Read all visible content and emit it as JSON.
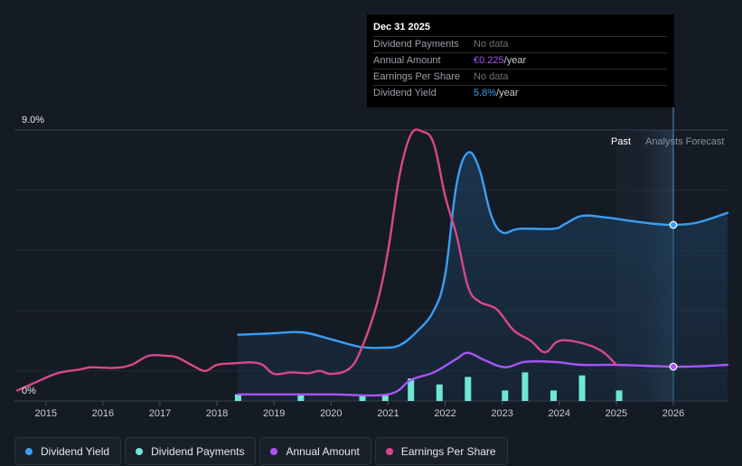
{
  "tooltip": {
    "date": "Dec 31 2025",
    "rows": [
      {
        "label": "Dividend Payments",
        "value": "No data",
        "unit": ""
      },
      {
        "label": "Annual Amount",
        "value": "€0.225",
        "unit": "/year"
      },
      {
        "label": "Earnings Per Share",
        "value": "No data",
        "unit": ""
      },
      {
        "label": "Dividend Yield",
        "value": "5.8%",
        "unit": "/year"
      }
    ]
  },
  "regions": {
    "past": "Past",
    "forecast": "Analysts Forecast"
  },
  "legend": [
    {
      "label": "Dividend Yield",
      "color": "#3b9ef5"
    },
    {
      "label": "Dividend Payments",
      "color": "#6ee7d8"
    },
    {
      "label": "Annual Amount",
      "color": "#a855f7"
    },
    {
      "label": "Earnings Per Share",
      "color": "#d9488a"
    }
  ],
  "chart_data": {
    "type": "line",
    "title": "",
    "x_range": [
      2014.45,
      2026.95
    ],
    "y_range": [
      0,
      9.0
    ],
    "y_tick_labels": [
      "9.0%",
      "0%"
    ],
    "x_ticks": [
      2015,
      2016,
      2017,
      2018,
      2019,
      2020,
      2021,
      2022,
      2023,
      2024,
      2025,
      2026
    ],
    "past_end": 2025.0,
    "forecast_start": 2025.35,
    "highlight_x": 2026.0,
    "series": [
      {
        "name": "Dividend Yield",
        "color": "#3b9ef5",
        "fill": true,
        "points": [
          [
            2018.37,
            2.2
          ],
          [
            2019.0,
            2.25
          ],
          [
            2019.5,
            2.28
          ],
          [
            2020.0,
            2.05
          ],
          [
            2020.5,
            1.8
          ],
          [
            2020.9,
            1.77
          ],
          [
            2021.2,
            1.85
          ],
          [
            2021.5,
            2.3
          ],
          [
            2021.8,
            3.0
          ],
          [
            2022.0,
            4.2
          ],
          [
            2022.2,
            7.2
          ],
          [
            2022.4,
            8.25
          ],
          [
            2022.6,
            7.7
          ],
          [
            2022.8,
            6.2
          ],
          [
            2023.0,
            5.6
          ],
          [
            2023.3,
            5.72
          ],
          [
            2023.9,
            5.72
          ],
          [
            2024.1,
            5.88
          ],
          [
            2024.4,
            6.15
          ],
          [
            2024.8,
            6.1
          ],
          [
            2025.3,
            5.97
          ],
          [
            2025.7,
            5.88
          ],
          [
            2026.0,
            5.85
          ],
          [
            2026.4,
            5.92
          ],
          [
            2026.95,
            6.25
          ]
        ]
      },
      {
        "name": "Annual Amount",
        "color": "#a855f7",
        "points": [
          [
            2018.37,
            0.22
          ],
          [
            2019.0,
            0.22
          ],
          [
            2020.0,
            0.22
          ],
          [
            2021.0,
            0.22
          ],
          [
            2021.4,
            0.7
          ],
          [
            2021.8,
            0.95
          ],
          [
            2022.2,
            1.4
          ],
          [
            2022.4,
            1.6
          ],
          [
            2022.7,
            1.35
          ],
          [
            2023.05,
            1.12
          ],
          [
            2023.4,
            1.3
          ],
          [
            2023.9,
            1.3
          ],
          [
            2024.4,
            1.2
          ],
          [
            2025.0,
            1.2
          ],
          [
            2025.5,
            1.17
          ],
          [
            2026.0,
            1.14
          ],
          [
            2026.4,
            1.15
          ],
          [
            2026.95,
            1.2
          ]
        ]
      },
      {
        "name": "Earnings Per Share",
        "color": "#d9488a",
        "points": [
          [
            2014.5,
            0.35
          ],
          [
            2014.8,
            0.6
          ],
          [
            2015.2,
            0.92
          ],
          [
            2015.6,
            1.05
          ],
          [
            2015.8,
            1.12
          ],
          [
            2016.2,
            1.1
          ],
          [
            2016.5,
            1.2
          ],
          [
            2016.8,
            1.5
          ],
          [
            2017.1,
            1.5
          ],
          [
            2017.3,
            1.45
          ],
          [
            2017.6,
            1.15
          ],
          [
            2017.8,
            1.0
          ],
          [
            2018.0,
            1.2
          ],
          [
            2018.3,
            1.25
          ],
          [
            2018.6,
            1.28
          ],
          [
            2018.8,
            1.2
          ],
          [
            2019.0,
            0.9
          ],
          [
            2019.3,
            0.95
          ],
          [
            2019.6,
            0.92
          ],
          [
            2019.8,
            1.0
          ],
          [
            2020.0,
            0.9
          ],
          [
            2020.3,
            1.05
          ],
          [
            2020.5,
            1.6
          ],
          [
            2020.8,
            3.2
          ],
          [
            2021.0,
            5.0
          ],
          [
            2021.2,
            7.5
          ],
          [
            2021.4,
            8.85
          ],
          [
            2021.6,
            8.95
          ],
          [
            2021.8,
            8.55
          ],
          [
            2022.0,
            6.8
          ],
          [
            2022.2,
            5.5
          ],
          [
            2022.4,
            3.8
          ],
          [
            2022.6,
            3.3
          ],
          [
            2022.9,
            3.05
          ],
          [
            2023.2,
            2.35
          ],
          [
            2023.5,
            2.0
          ],
          [
            2023.75,
            1.62
          ],
          [
            2024.0,
            2.0
          ],
          [
            2024.4,
            1.92
          ],
          [
            2024.75,
            1.65
          ],
          [
            2025.0,
            1.2
          ]
        ]
      }
    ],
    "bars": {
      "name": "Dividend Payments",
      "color": "#6ee7d8",
      "points": [
        [
          2018.37,
          0.22
        ],
        [
          2019.47,
          0.18
        ],
        [
          2020.55,
          0.2
        ],
        [
          2020.95,
          0.22
        ],
        [
          2021.4,
          0.75
        ],
        [
          2021.9,
          0.55
        ],
        [
          2022.4,
          0.8
        ],
        [
          2023.05,
          0.35
        ],
        [
          2023.4,
          0.95
        ],
        [
          2023.9,
          0.35
        ],
        [
          2024.4,
          0.85
        ],
        [
          2025.05,
          0.35
        ]
      ]
    }
  }
}
